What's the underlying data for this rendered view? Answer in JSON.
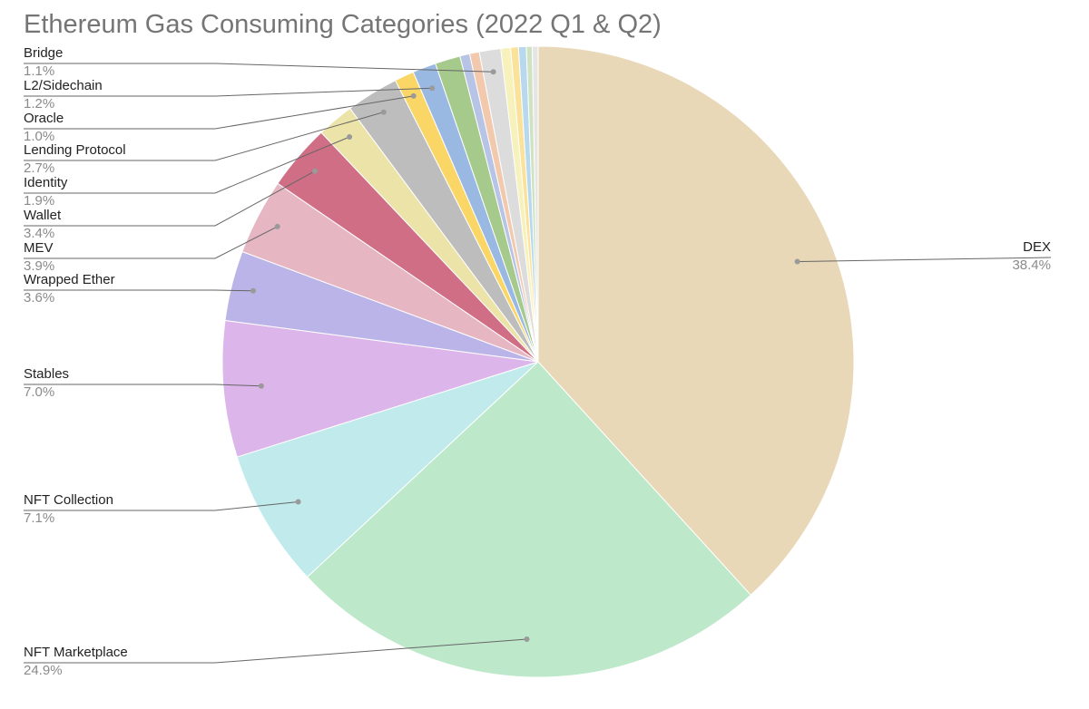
{
  "chart_data": {
    "type": "pie",
    "title": "Ethereum Gas Consuming Categories (2022 Q1 & Q2)",
    "slices": [
      {
        "label": "DEX",
        "value": 38.4,
        "display": "38.4%",
        "color": "#e8d8b8",
        "labeled": true
      },
      {
        "label": "NFT Marketplace",
        "value": 24.9,
        "display": "24.9%",
        "color": "#bde8c9",
        "labeled": true
      },
      {
        "label": "NFT Collection",
        "value": 7.1,
        "display": "7.1%",
        "color": "#c0eaec",
        "labeled": true
      },
      {
        "label": "Stables",
        "value": 7.0,
        "display": "7.0%",
        "color": "#dcb5ea",
        "labeled": true
      },
      {
        "label": "Wrapped Ether",
        "value": 3.6,
        "display": "3.6%",
        "color": "#bbb4e8",
        "labeled": true
      },
      {
        "label": "MEV",
        "value": 3.9,
        "display": "3.9%",
        "color": "#e6b6c2",
        "labeled": true
      },
      {
        "label": "Wallet",
        "value": 3.4,
        "display": "3.4%",
        "color": "#cf6e85",
        "labeled": true
      },
      {
        "label": "Identity",
        "value": 1.9,
        "display": "1.9%",
        "color": "#ebe3a8",
        "labeled": true
      },
      {
        "label": "Lending Protocol",
        "value": 2.7,
        "display": "2.7%",
        "color": "#bdbdbd",
        "labeled": true
      },
      {
        "label": "Oracle",
        "value": 1.0,
        "display": "1.0%",
        "color": "#fad667",
        "labeled": true
      },
      {
        "label": "L2/Sidechain",
        "value": 1.2,
        "display": "1.2%",
        "color": "#9ab9e2",
        "labeled": true
      },
      {
        "label": "",
        "value": 1.3,
        "display": "",
        "color": "#a6c98c",
        "labeled": false
      },
      {
        "label": "",
        "value": 0.5,
        "display": "",
        "color": "#b7c4e6",
        "labeled": false
      },
      {
        "label": "",
        "value": 0.5,
        "display": "",
        "color": "#f3c9ae",
        "labeled": false
      },
      {
        "label": "Bridge",
        "value": 1.1,
        "display": "1.1%",
        "color": "#dcdcdc",
        "labeled": true
      },
      {
        "label": "",
        "value": 0.5,
        "display": "",
        "color": "#f7f1bb",
        "labeled": false
      },
      {
        "label": "",
        "value": 0.4,
        "display": "",
        "color": "#fbe29a",
        "labeled": false
      },
      {
        "label": "",
        "value": 0.4,
        "display": "",
        "color": "#b8d8ee",
        "labeled": false
      },
      {
        "label": "",
        "value": 0.3,
        "display": "",
        "color": "#cfe3c3",
        "labeled": false
      },
      {
        "label": "",
        "value": 0.3,
        "display": "",
        "color": "#e5e5e5",
        "labeled": false
      }
    ]
  }
}
